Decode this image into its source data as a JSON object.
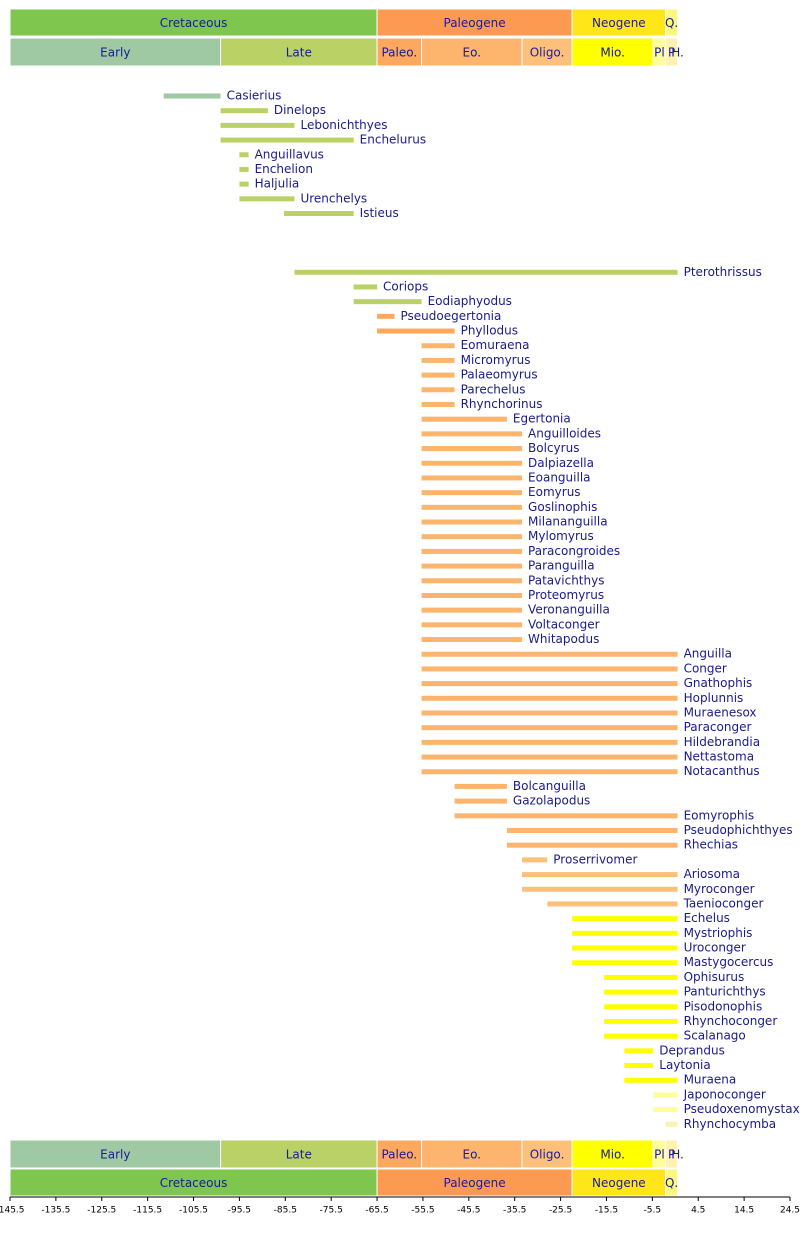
{
  "chart_data": {
    "type": "timeline",
    "xlim": [
      -145.5,
      24.5
    ],
    "xticks": [
      -145.5,
      -135.5,
      -125.5,
      -115.5,
      -105.5,
      -95.5,
      -85.5,
      -75.5,
      -65.5,
      -55.5,
      -45.5,
      -35.5,
      -25.5,
      -15.5,
      -5.5,
      4.5,
      14.5,
      24.5
    ],
    "periods": [
      {
        "name": "Cretaceous",
        "start": -145.5,
        "end": -65.5,
        "color": "#7fc64e"
      },
      {
        "name": "Paleogene",
        "start": -65.5,
        "end": -23,
        "color": "#fd9a52"
      },
      {
        "name": "Neogene",
        "start": -23,
        "end": -2.6,
        "color": "#ffe619"
      },
      {
        "name": "Q.",
        "start": -2.6,
        "end": 0,
        "color": "#f9f97f"
      }
    ],
    "epochs": [
      {
        "name": "Early",
        "start": -145.5,
        "end": -99.6,
        "color": "#9ec9a2"
      },
      {
        "name": "Late",
        "start": -99.6,
        "end": -65.5,
        "color": "#bad165"
      },
      {
        "name": "Paleo.",
        "start": -65.5,
        "end": -55.8,
        "color": "#fda75f"
      },
      {
        "name": "Eo.",
        "start": -55.8,
        "end": -33.9,
        "color": "#fdb46c"
      },
      {
        "name": "Oligo.",
        "start": -33.9,
        "end": -23,
        "color": "#fdc07a"
      },
      {
        "name": "Mio.",
        "start": -23,
        "end": -5.3,
        "color": "#ffff00"
      },
      {
        "name": "Pl",
        "start": -5.3,
        "end": -2.6,
        "color": "#ffff99"
      },
      {
        "name": "P",
        "start": -2.6,
        "end": -0.01,
        "color": "#fff2ae"
      },
      {
        "name": "H.",
        "start": -0.01,
        "end": 0,
        "color": "#fef2e0"
      }
    ],
    "taxa": [
      {
        "name": "Casierius",
        "start": -112,
        "end": -99.6
      },
      {
        "name": "Dinelops",
        "start": -99.6,
        "end": -89.3
      },
      {
        "name": "Lebonichthyes",
        "start": -99.6,
        "end": -83.5
      },
      {
        "name": "Enchelurus",
        "start": -99.6,
        "end": -70.6
      },
      {
        "name": "Anguillavus",
        "start": -95.5,
        "end": -93.5
      },
      {
        "name": "Enchelion",
        "start": -95.5,
        "end": -93.5
      },
      {
        "name": "Haljulia",
        "start": -95.5,
        "end": -93.5
      },
      {
        "name": "Urenchelys",
        "start": -95.5,
        "end": -83.5
      },
      {
        "name": "Istieus",
        "start": -85.8,
        "end": -70.6
      },
      {
        "name": "Pterothrissus",
        "start": -83.5,
        "end": 0
      },
      {
        "name": "Coriops",
        "start": -70.6,
        "end": -65.5
      },
      {
        "name": "Eodiaphyodus",
        "start": -70.6,
        "end": -55.8
      },
      {
        "name": "Pseudoegertonia",
        "start": -65.5,
        "end": -61.7
      },
      {
        "name": "Phyllodus",
        "start": -65.5,
        "end": -48.6
      },
      {
        "name": "Eomuraena",
        "start": -55.8,
        "end": -48.6
      },
      {
        "name": "Micromyrus",
        "start": -55.8,
        "end": -48.6
      },
      {
        "name": "Palaeomyrus",
        "start": -55.8,
        "end": -48.6
      },
      {
        "name": "Parechelus",
        "start": -55.8,
        "end": -48.6
      },
      {
        "name": "Rhynchorinus",
        "start": -55.8,
        "end": -48.6
      },
      {
        "name": "Egertonia",
        "start": -55.8,
        "end": -37.2
      },
      {
        "name": "Anguilloides",
        "start": -55.8,
        "end": -33.9
      },
      {
        "name": "Bolcyrus",
        "start": -55.8,
        "end": -33.9
      },
      {
        "name": "Dalpiazella",
        "start": -55.8,
        "end": -33.9
      },
      {
        "name": "Eoanguilla",
        "start": -55.8,
        "end": -33.9
      },
      {
        "name": "Eomyrus",
        "start": -55.8,
        "end": -33.9
      },
      {
        "name": "Goslinophis",
        "start": -55.8,
        "end": -33.9
      },
      {
        "name": "Milananguilla",
        "start": -55.8,
        "end": -33.9
      },
      {
        "name": "Mylomyrus",
        "start": -55.8,
        "end": -33.9
      },
      {
        "name": "Paracongroides",
        "start": -55.8,
        "end": -33.9
      },
      {
        "name": "Paranguilla",
        "start": -55.8,
        "end": -33.9
      },
      {
        "name": "Patavichthys",
        "start": -55.8,
        "end": -33.9
      },
      {
        "name": "Proteomyrus",
        "start": -55.8,
        "end": -33.9
      },
      {
        "name": "Veronanguilla",
        "start": -55.8,
        "end": -33.9
      },
      {
        "name": "Voltaconger",
        "start": -55.8,
        "end": -33.9
      },
      {
        "name": "Whitapodus",
        "start": -55.8,
        "end": -33.9
      },
      {
        "name": "Anguilla",
        "start": -55.8,
        "end": 0
      },
      {
        "name": "Conger",
        "start": -55.8,
        "end": 0
      },
      {
        "name": "Gnathophis",
        "start": -55.8,
        "end": 0
      },
      {
        "name": "Hoplunnis",
        "start": -55.8,
        "end": 0
      },
      {
        "name": "Muraenesox",
        "start": -55.8,
        "end": 0
      },
      {
        "name": "Paraconger",
        "start": -55.8,
        "end": 0
      },
      {
        "name": "Hildebrandia",
        "start": -55.8,
        "end": 0
      },
      {
        "name": "Nettastoma",
        "start": -55.8,
        "end": 0
      },
      {
        "name": "Notacanthus",
        "start": -55.8,
        "end": 0
      },
      {
        "name": "Bolcanguilla",
        "start": -48.6,
        "end": -37.2
      },
      {
        "name": "Gazolapodus",
        "start": -48.6,
        "end": -37.2
      },
      {
        "name": "Eomyrophis",
        "start": -48.6,
        "end": 0
      },
      {
        "name": "Pseudophichthyes",
        "start": -37.2,
        "end": 0
      },
      {
        "name": "Rhechias",
        "start": -37.2,
        "end": 0
      },
      {
        "name": "Proserrivomer",
        "start": -33.9,
        "end": -28.4
      },
      {
        "name": "Ariosoma",
        "start": -33.9,
        "end": 0
      },
      {
        "name": "Myroconger",
        "start": -33.9,
        "end": 0
      },
      {
        "name": "Taenioconger",
        "start": -28.4,
        "end": 0
      },
      {
        "name": "Echelus",
        "start": -23,
        "end": 0
      },
      {
        "name": "Mystriophis",
        "start": -23,
        "end": 0
      },
      {
        "name": "Uroconger",
        "start": -23,
        "end": 0
      },
      {
        "name": "Mastygocercus",
        "start": -23,
        "end": 0
      },
      {
        "name": "Ophisurus",
        "start": -16,
        "end": 0
      },
      {
        "name": "Panturichthys",
        "start": -16,
        "end": 0
      },
      {
        "name": "Pisodonophis",
        "start": -16,
        "end": 0
      },
      {
        "name": "Rhynchoconger",
        "start": -16,
        "end": 0
      },
      {
        "name": "Scalanago",
        "start": -16,
        "end": 0
      },
      {
        "name": "Deprandus",
        "start": -11.6,
        "end": -5.3
      },
      {
        "name": "Laytonia",
        "start": -11.6,
        "end": -5.3
      },
      {
        "name": "Muraena",
        "start": -11.6,
        "end": 0
      },
      {
        "name": "Japonoconger",
        "start": -5.3,
        "end": 0
      },
      {
        "name": "Pseudoxenomystax",
        "start": -5.3,
        "end": 0
      },
      {
        "name": "Rhynchocymba",
        "start": -2.6,
        "end": 0
      }
    ]
  }
}
